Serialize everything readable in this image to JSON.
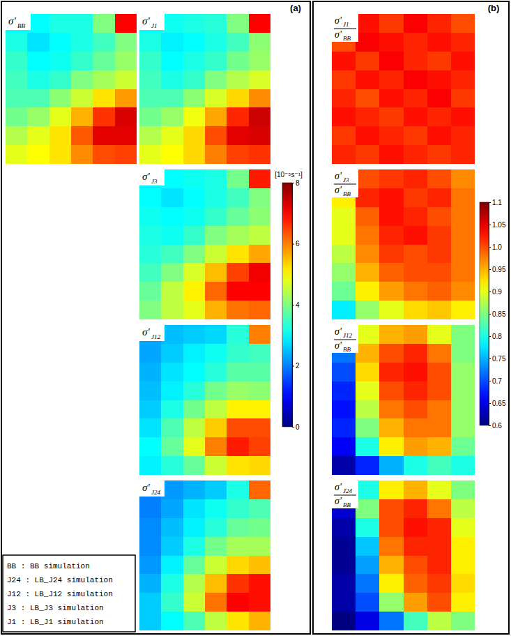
{
  "chart_data": [
    {
      "type": "heatmap",
      "title": "(a)",
      "colorbar": {
        "range": [
          0,
          8
        ],
        "ticks": [
          0,
          2,
          4,
          6,
          8
        ],
        "label": "[10⁻⁵s⁻¹]"
      },
      "maps": [
        {
          "symbol": "σ'",
          "sub": "BB",
          "cells": [
            [
              3.0,
              3.0,
              3.2,
              3.2,
              4.0,
              7.0
            ],
            [
              3.2,
              2.8,
              3.0,
              3.2,
              3.5,
              4.0
            ],
            [
              3.4,
              3.0,
              3.1,
              3.4,
              3.8,
              4.2
            ],
            [
              3.5,
              3.2,
              3.4,
              4.0,
              4.3,
              4.6
            ],
            [
              3.6,
              3.6,
              4.1,
              4.6,
              5.2,
              5.8
            ],
            [
              3.9,
              4.2,
              4.8,
              5.6,
              6.6,
              7.3
            ],
            [
              4.4,
              4.8,
              5.2,
              6.3,
              7.2,
              7.2
            ],
            [
              4.8,
              5.0,
              5.2,
              5.9,
              6.4,
              6.5
            ]
          ]
        },
        {
          "symbol": "σ'",
          "sub": "J1",
          "cells": [
            [
              3.0,
              3.1,
              3.2,
              3.3,
              4.0,
              7.0
            ],
            [
              3.2,
              2.9,
              3.0,
              3.2,
              3.5,
              4.1
            ],
            [
              3.4,
              3.0,
              3.2,
              3.4,
              3.9,
              4.2
            ],
            [
              3.5,
              3.2,
              3.4,
              4.0,
              4.4,
              4.7
            ],
            [
              3.6,
              3.6,
              4.1,
              4.7,
              5.3,
              5.9
            ],
            [
              3.9,
              4.2,
              4.9,
              5.7,
              6.7,
              7.4
            ],
            [
              4.4,
              4.8,
              5.3,
              6.4,
              7.2,
              7.3
            ],
            [
              4.8,
              5.0,
              5.3,
              6.0,
              6.5,
              6.6
            ]
          ]
        },
        {
          "symbol": "σ'",
          "sub": "J3",
          "cells": [
            [
              2.9,
              3.0,
              3.1,
              3.2,
              3.9,
              6.8
            ],
            [
              3.0,
              2.8,
              3.0,
              3.2,
              3.5,
              4.0
            ],
            [
              3.1,
              3.0,
              3.1,
              3.4,
              3.8,
              4.1
            ],
            [
              3.2,
              3.1,
              3.4,
              4.0,
              4.3,
              4.5
            ],
            [
              3.3,
              3.5,
              4.0,
              4.6,
              5.2,
              5.7
            ],
            [
              3.5,
              4.0,
              4.7,
              5.5,
              6.5,
              7.1
            ],
            [
              3.8,
              4.5,
              5.1,
              6.2,
              7.0,
              7.0
            ],
            [
              4.0,
              4.5,
              4.8,
              5.6,
              6.1,
              6.2
            ]
          ]
        },
        {
          "symbol": "σ'",
          "sub": "J12",
          "cells": [
            [
              2.3,
              2.5,
              2.6,
              2.7,
              3.3,
              6.0
            ],
            [
              2.3,
              2.6,
              2.9,
              3.1,
              3.4,
              3.5
            ],
            [
              2.4,
              2.8,
              3.0,
              3.3,
              3.7,
              3.7
            ],
            [
              2.5,
              2.9,
              3.3,
              3.9,
              4.2,
              4.1
            ],
            [
              2.6,
              3.2,
              3.9,
              4.5,
              5.1,
              5.1
            ],
            [
              2.8,
              3.6,
              4.5,
              5.4,
              6.4,
              6.4
            ],
            [
              3.0,
              3.8,
              4.8,
              6.0,
              6.8,
              6.5
            ],
            [
              2.9,
              3.3,
              3.8,
              4.6,
              5.2,
              5.3
            ]
          ]
        },
        {
          "symbol": "σ'",
          "sub": "J24",
          "cells": [
            [
              2.0,
              2.2,
              2.4,
              2.6,
              3.2,
              6.2
            ],
            [
              2.0,
              2.3,
              2.8,
              3.1,
              3.4,
              3.6
            ],
            [
              2.1,
              2.5,
              2.9,
              3.3,
              3.8,
              3.9
            ],
            [
              2.1,
              2.6,
              3.2,
              3.9,
              4.3,
              4.3
            ],
            [
              2.2,
              2.9,
              3.8,
              4.6,
              5.3,
              5.5
            ],
            [
              2.4,
              3.2,
              4.4,
              5.5,
              6.6,
              6.9
            ],
            [
              2.6,
              3.4,
              4.6,
              6.1,
              7.0,
              6.9
            ],
            [
              2.6,
              3.0,
              3.6,
              4.5,
              5.2,
              5.6
            ]
          ]
        }
      ],
      "annotations": [
        "BB : BB simulation",
        "J24 : LB_J24 simulation",
        "J12 : LB_J12 simulation",
        "J3 : LB_J3 simulation",
        "J1 : LB_J1 simulation"
      ]
    },
    {
      "type": "heatmap",
      "title": "(b)",
      "colorbar": {
        "range": [
          0.6,
          1.1
        ],
        "ticks": [
          0.6,
          0.65,
          0.7,
          0.75,
          0.8,
          0.85,
          0.9,
          0.95,
          {
            "value": 1,
            "label": "1.0"
          },
          1.05,
          1.1
        ]
      },
      "maps": [
        {
          "symbol": "σ'",
          "sub": "J1",
          "den_symbol": "σ'",
          "den_sub": "BB",
          "cells": [
            [
              1.02,
              1.03,
              1.01,
              1.04,
              1.02,
              1.0
            ],
            [
              1.0,
              1.04,
              1.03,
              1.02,
              1.03,
              1.02
            ],
            [
              1.03,
              1.01,
              1.04,
              1.02,
              1.01,
              1.03
            ],
            [
              1.01,
              1.03,
              1.02,
              1.04,
              1.03,
              1.02
            ],
            [
              1.02,
              1.0,
              1.03,
              1.02,
              1.04,
              1.01
            ],
            [
              1.03,
              1.02,
              1.01,
              1.03,
              1.02,
              1.03
            ],
            [
              1.01,
              1.03,
              1.02,
              1.01,
              1.03,
              1.02
            ],
            [
              1.02,
              1.01,
              1.03,
              1.02,
              1.01,
              1.02
            ]
          ]
        },
        {
          "symbol": "σ'",
          "sub": "J3",
          "den_symbol": "σ'",
          "den_sub": "BB",
          "cells": [
            [
              0.95,
              1.0,
              1.01,
              1.02,
              1.0,
              0.97
            ],
            [
              0.92,
              1.02,
              1.03,
              1.01,
              1.02,
              0.98
            ],
            [
              0.9,
              0.99,
              1.03,
              1.02,
              1.0,
              0.98
            ],
            [
              0.9,
              0.98,
              1.02,
              1.03,
              1.01,
              0.98
            ],
            [
              0.88,
              0.97,
              1.01,
              1.0,
              1.01,
              0.98
            ],
            [
              0.86,
              0.95,
              0.99,
              1.0,
              1.0,
              0.98
            ],
            [
              0.84,
              0.92,
              0.96,
              0.98,
              0.99,
              0.97
            ],
            [
              0.78,
              0.86,
              0.9,
              0.93,
              0.94,
              0.92
            ]
          ]
        },
        {
          "symbol": "σ'",
          "sub": "J12",
          "den_symbol": "σ'",
          "den_sub": "BB",
          "cells": [
            [
              0.8,
              0.9,
              0.95,
              0.96,
              0.9,
              0.85
            ],
            [
              0.72,
              0.95,
              1.0,
              1.02,
              0.98,
              0.85
            ],
            [
              0.7,
              0.93,
              1.02,
              1.03,
              1.0,
              0.86
            ],
            [
              0.68,
              0.9,
              1.0,
              1.02,
              1.0,
              0.86
            ],
            [
              0.67,
              0.88,
              0.98,
              1.0,
              0.98,
              0.86
            ],
            [
              0.68,
              0.85,
              0.95,
              0.98,
              0.98,
              0.86
            ],
            [
              0.66,
              0.8,
              0.92,
              0.96,
              0.95,
              0.84
            ],
            [
              0.62,
              0.68,
              0.75,
              0.8,
              0.82,
              0.8
            ]
          ]
        },
        {
          "symbol": "σ'",
          "sub": "J24",
          "den_symbol": "σ'",
          "den_sub": "BB",
          "cells": [
            [
              0.7,
              0.8,
              0.92,
              0.95,
              0.9,
              0.85
            ],
            [
              0.64,
              0.85,
              1.0,
              1.02,
              0.98,
              0.88
            ],
            [
              0.62,
              0.8,
              1.0,
              1.03,
              1.02,
              0.9
            ],
            [
              0.61,
              0.76,
              0.98,
              1.02,
              1.02,
              0.92
            ],
            [
              0.61,
              0.74,
              0.95,
              1.0,
              1.02,
              0.92
            ],
            [
              0.62,
              0.72,
              0.92,
              0.99,
              1.01,
              0.93
            ],
            [
              0.62,
              0.7,
              0.86,
              0.96,
              1.0,
              0.92
            ],
            [
              0.6,
              0.65,
              0.72,
              0.82,
              0.88,
              0.85
            ]
          ]
        }
      ]
    }
  ]
}
